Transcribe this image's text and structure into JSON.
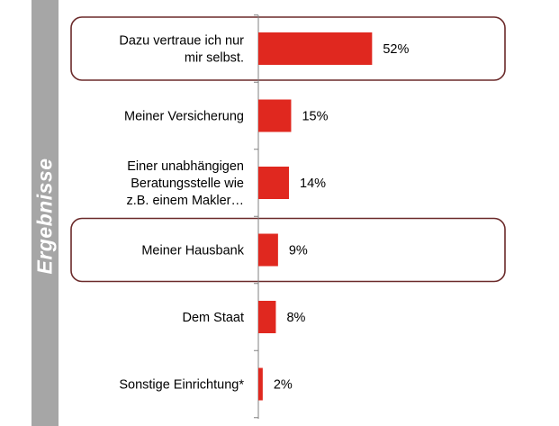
{
  "sidebar": {
    "label": "Ergebnisse"
  },
  "colors": {
    "bar": "#e0281f",
    "highlight_border": "#6b2a2a",
    "sidebar": "#a6a6a6",
    "axis": "#808080"
  },
  "chart_data": {
    "type": "bar",
    "orientation": "horizontal",
    "categories": [
      "Dazu vertraue ich nur mir selbst.",
      "Meiner Versicherung",
      "Einer unabhängigen Beratungsstelle wie z.B. einem Makler…",
      "Meiner Hausbank",
      "Dem Staat",
      "Sonstige Einrichtung*"
    ],
    "category_lines": [
      [
        "Dazu vertraue ich nur",
        "mir selbst."
      ],
      [
        "Meiner Versicherung"
      ],
      [
        "Einer unabhängigen",
        "Beratungsstelle wie",
        "z.B. einem Makler…"
      ],
      [
        "Meiner Hausbank"
      ],
      [
        "Dem Staat"
      ],
      [
        "Sonstige Einrichtung*"
      ]
    ],
    "values": [
      52,
      15,
      14,
      9,
      8,
      2
    ],
    "value_labels": [
      "52%",
      "15%",
      "14%",
      "9%",
      "8%",
      "2%"
    ],
    "highlighted": [
      0,
      3
    ],
    "xlim": [
      0,
      100
    ],
    "unit": "%",
    "grid": false,
    "legend": "none"
  }
}
